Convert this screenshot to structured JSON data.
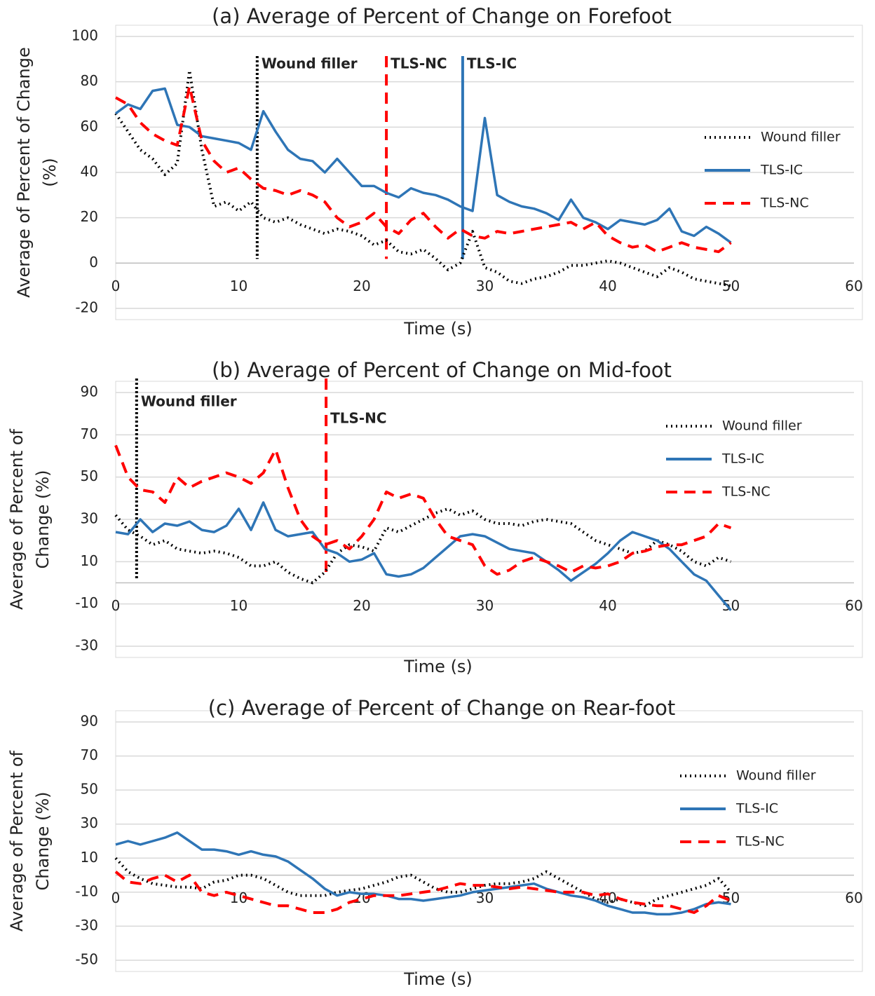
{
  "chart_data": [
    {
      "type": "line",
      "title": "(a) Average of Percent of Change on Forefoot",
      "xlabel": "Time (s)",
      "ylabel": [
        "Average of Percent of Change",
        "(%)"
      ],
      "x": [
        0,
        1,
        2,
        3,
        4,
        5,
        6,
        7,
        8,
        9,
        10,
        11,
        12,
        13,
        14,
        15,
        16,
        17,
        18,
        19,
        20,
        21,
        22,
        23,
        24,
        25,
        26,
        27,
        28,
        29,
        30,
        31,
        32,
        33,
        34,
        35,
        36,
        37,
        38,
        39,
        40,
        41,
        42,
        43,
        44,
        45,
        46,
        47,
        48,
        49,
        50
      ],
      "xlim": [
        0,
        60
      ],
      "xticks": [
        0,
        10,
        20,
        30,
        40,
        50,
        60
      ],
      "ylim": [
        -20,
        100
      ],
      "yticks": [
        -20,
        0,
        20,
        40,
        60,
        80,
        100
      ],
      "grid": true,
      "legend": "right",
      "series": [
        {
          "name": "Wound filler",
          "color": "#000000",
          "style": "dotted",
          "values": [
            66,
            58,
            50,
            46,
            39,
            44,
            85,
            50,
            25,
            27,
            23,
            27,
            20,
            18,
            20,
            17,
            15,
            13,
            15,
            14,
            12,
            8,
            10,
            5,
            4,
            6,
            2,
            -3,
            0,
            14,
            -2,
            -4,
            -8,
            -9,
            -7,
            -6,
            -4,
            -1,
            -1,
            0,
            1,
            0,
            -2,
            -4,
            -6,
            -2,
            -4,
            -7,
            -8,
            -9,
            -10
          ]
        },
        {
          "name": "TLS-IC",
          "color": "#2e75b6",
          "style": "solid",
          "values": [
            66,
            70,
            68,
            76,
            77,
            61,
            60,
            56,
            55,
            54,
            53,
            50,
            67,
            58,
            50,
            46,
            45,
            40,
            46,
            40,
            34,
            34,
            31,
            29,
            33,
            31,
            30,
            28,
            25,
            23,
            64,
            30,
            27,
            25,
            24,
            22,
            19,
            28,
            20,
            18,
            15,
            19,
            18,
            17,
            19,
            24,
            14,
            12,
            16,
            13,
            9
          ]
        },
        {
          "name": "TLS-NC",
          "color": "#ff0000",
          "style": "dashed",
          "values": [
            73,
            70,
            62,
            57,
            54,
            52,
            78,
            54,
            45,
            40,
            42,
            37,
            33,
            32,
            30,
            32,
            30,
            27,
            20,
            16,
            18,
            22,
            16,
            13,
            19,
            22,
            16,
            11,
            15,
            12,
            11,
            14,
            13,
            14,
            15,
            16,
            17,
            18,
            15,
            18,
            12,
            9,
            7,
            8,
            5,
            7,
            9,
            7,
            6,
            5,
            9
          ]
        }
      ],
      "annotations": [
        {
          "text": "Wound filler",
          "x": 11.5,
          "color": "#000000",
          "style": "dotted"
        },
        {
          "text": "TLS-NC",
          "x": 22,
          "color": "#ff0000",
          "style": "dashed"
        },
        {
          "text": "TLS-IC",
          "x": 28.2,
          "color": "#2e75b6",
          "style": "solid"
        }
      ]
    },
    {
      "type": "line",
      "title": "(b) Average of Percent of Change on Mid-foot",
      "xlabel": "Time (s)",
      "ylabel": [
        "Average of Percent of",
        "Change (%)"
      ],
      "x": [
        0,
        1,
        2,
        3,
        4,
        5,
        6,
        7,
        8,
        9,
        10,
        11,
        12,
        13,
        14,
        15,
        16,
        17,
        18,
        19,
        20,
        21,
        22,
        23,
        24,
        25,
        26,
        27,
        28,
        29,
        30,
        31,
        32,
        33,
        34,
        35,
        36,
        37,
        38,
        39,
        40,
        41,
        42,
        43,
        44,
        45,
        46,
        47,
        48,
        49,
        50
      ],
      "xlim": [
        0,
        60
      ],
      "xticks": [
        0,
        10,
        20,
        30,
        40,
        50,
        60
      ],
      "ylim": [
        -30,
        90
      ],
      "yticks": [
        -30,
        -10,
        10,
        30,
        50,
        70,
        90
      ],
      "grid": true,
      "legend": "right",
      "series": [
        {
          "name": "Wound filler",
          "color": "#000000",
          "style": "dotted",
          "values": [
            32,
            25,
            22,
            18,
            20,
            16,
            15,
            14,
            15,
            14,
            12,
            8,
            8,
            10,
            5,
            2,
            0,
            5,
            14,
            18,
            17,
            15,
            26,
            24,
            27,
            30,
            33,
            35,
            32,
            34,
            30,
            28,
            28,
            27,
            29,
            30,
            29,
            28,
            24,
            20,
            18,
            16,
            14,
            15,
            20,
            18,
            15,
            10,
            8,
            12,
            10
          ]
        },
        {
          "name": "TLS-IC",
          "color": "#2e75b6",
          "style": "solid",
          "values": [
            24,
            23,
            30,
            24,
            28,
            27,
            29,
            25,
            24,
            27,
            35,
            25,
            38,
            25,
            22,
            23,
            24,
            16,
            14,
            10,
            11,
            14,
            4,
            3,
            4,
            7,
            12,
            17,
            22,
            23,
            22,
            19,
            16,
            15,
            14,
            10,
            6,
            1,
            5,
            9,
            14,
            20,
            24,
            22,
            20,
            16,
            10,
            4,
            1,
            -6,
            -13
          ]
        },
        {
          "name": "TLS-NC",
          "color": "#ff0000",
          "style": "dashed",
          "values": [
            65,
            50,
            44,
            43,
            38,
            50,
            45,
            48,
            50,
            52,
            50,
            47,
            52,
            63,
            45,
            30,
            22,
            18,
            20,
            16,
            22,
            30,
            43,
            40,
            42,
            40,
            30,
            22,
            20,
            18,
            8,
            4,
            6,
            10,
            12,
            10,
            8,
            5,
            8,
            7,
            8,
            10,
            14,
            15,
            17,
            18,
            18,
            20,
            22,
            28,
            26
          ]
        }
      ],
      "annotations": [
        {
          "text": "Wound filler",
          "x": 1.7,
          "color": "#000000",
          "style": "dotted"
        },
        {
          "text": "TLS-NC",
          "x": 17.1,
          "color": "#ff0000",
          "style": "dashed"
        }
      ]
    },
    {
      "type": "line",
      "title": "(c) Average of Percent of Change on Rear-foot",
      "xlabel": "Time (s)",
      "ylabel": [
        "Average of Percent of",
        "Change (%)"
      ],
      "x": [
        0,
        1,
        2,
        3,
        4,
        5,
        6,
        7,
        8,
        9,
        10,
        11,
        12,
        13,
        14,
        15,
        16,
        17,
        18,
        19,
        20,
        21,
        22,
        23,
        24,
        25,
        26,
        27,
        28,
        29,
        30,
        31,
        32,
        33,
        34,
        35,
        36,
        37,
        38,
        39,
        40,
        41,
        42,
        43,
        44,
        45,
        46,
        47,
        48,
        49,
        50
      ],
      "xlim": [
        0,
        60
      ],
      "xticks": [
        0,
        10,
        20,
        30,
        40,
        50,
        60
      ],
      "ylim": [
        -50,
        90
      ],
      "yticks": [
        -50,
        -30,
        -10,
        10,
        30,
        50,
        70,
        90
      ],
      "grid": true,
      "legend": "right",
      "series": [
        {
          "name": "Wound filler",
          "color": "#000000",
          "style": "dotted",
          "values": [
            10,
            2,
            -2,
            -5,
            -6,
            -7,
            -7,
            -8,
            -4,
            -3,
            0,
            0,
            -2,
            -6,
            -10,
            -12,
            -12,
            -12,
            -10,
            -9,
            -8,
            -6,
            -4,
            -1,
            0,
            -4,
            -8,
            -10,
            -10,
            -8,
            -6,
            -5,
            -5,
            -4,
            -2,
            2,
            -2,
            -6,
            -10,
            -14,
            -16,
            -14,
            -16,
            -18,
            -14,
            -12,
            -10,
            -8,
            -6,
            -2,
            -10
          ]
        },
        {
          "name": "TLS-IC",
          "color": "#2e75b6",
          "style": "solid",
          "values": [
            18,
            20,
            18,
            20,
            22,
            25,
            20,
            15,
            15,
            14,
            12,
            14,
            12,
            11,
            8,
            3,
            -2,
            -8,
            -12,
            -10,
            -11,
            -11,
            -12,
            -14,
            -14,
            -15,
            -14,
            -13,
            -12,
            -10,
            -9,
            -8,
            -7,
            -6,
            -5,
            -8,
            -10,
            -12,
            -13,
            -15,
            -18,
            -20,
            -22,
            -22,
            -23,
            -23,
            -22,
            -20,
            -17,
            -16,
            -17
          ]
        },
        {
          "name": "TLS-NC",
          "color": "#ff0000",
          "style": "dashed",
          "values": [
            2,
            -4,
            -5,
            -2,
            0,
            -4,
            0,
            -10,
            -12,
            -10,
            -12,
            -14,
            -16,
            -18,
            -18,
            -20,
            -22,
            -22,
            -20,
            -16,
            -14,
            -12,
            -12,
            -12,
            -11,
            -10,
            -9,
            -7,
            -5,
            -6,
            -6,
            -7,
            -8,
            -7,
            -8,
            -9,
            -10,
            -10,
            -10,
            -12,
            -11,
            -14,
            -16,
            -17,
            -18,
            -18,
            -20,
            -22,
            -18,
            -12,
            -15
          ]
        }
      ],
      "annotations": []
    }
  ]
}
